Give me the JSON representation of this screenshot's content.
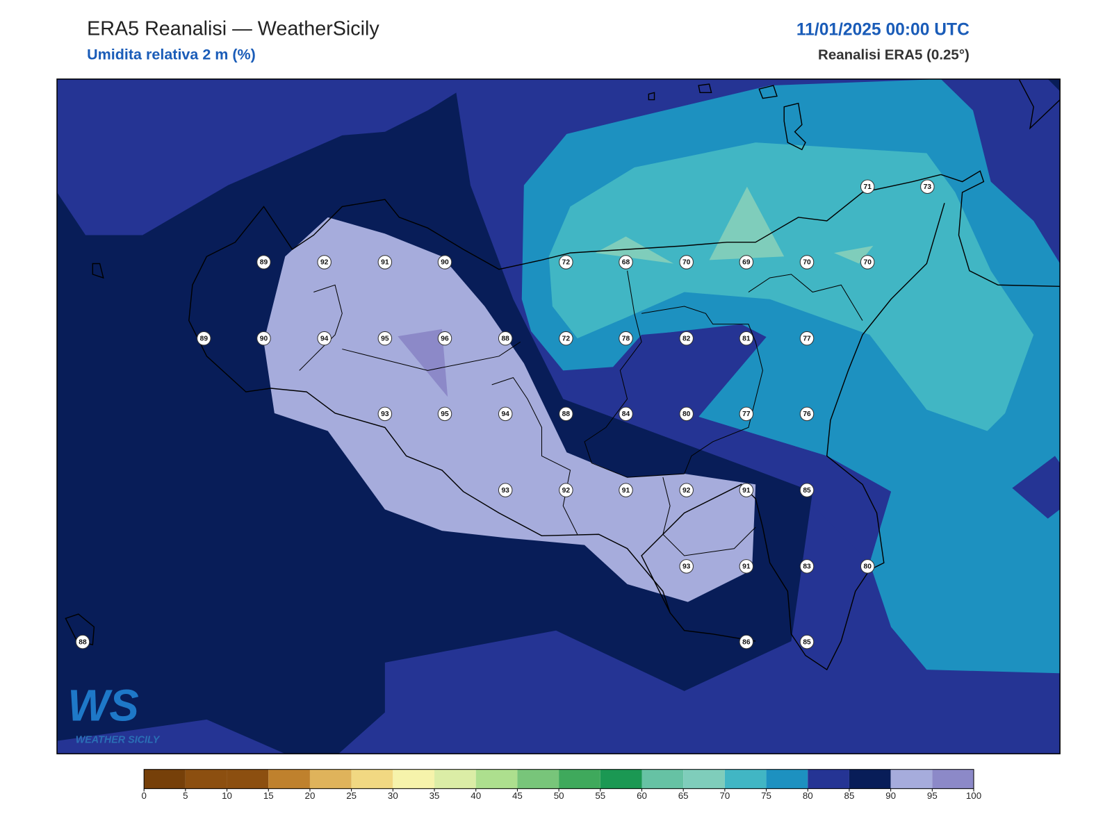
{
  "header": {
    "title": "ERA5 Reanalisi — WeatherSicily",
    "subtitle": "Umidita relativa 2 m (%)",
    "datetime": "11/01/2025 00:00 UTC",
    "source": "Reanalisi ERA5 (0.25°)"
  },
  "stations": [
    89,
    92,
    91,
    90,
    72,
    68,
    70,
    69,
    70,
    70,
    71,
    73,
    89,
    90,
    94,
    95,
    96,
    88,
    72,
    78,
    82,
    81,
    77,
    93,
    95,
    94,
    88,
    84,
    80,
    77,
    76,
    93,
    92,
    91,
    92,
    91,
    85,
    93,
    91,
    83,
    80,
    88,
    86,
    85
  ],
  "colorbar": {
    "ticks": [
      0,
      5,
      10,
      15,
      20,
      25,
      30,
      35,
      40,
      45,
      50,
      55,
      60,
      65,
      70,
      75,
      80,
      85,
      90,
      95,
      100
    ],
    "colors": [
      "#764009",
      "#8c4f10",
      "#8c4f10",
      "#bf812d",
      "#dfb35b",
      "#f1d882",
      "#f6f3ab",
      "#dbeda6",
      "#addf8e",
      "#78c57a",
      "#3fa95c",
      "#1b9853",
      "#66c2a4",
      "#7fcdbb",
      "#41b6c4",
      "#1d91c0",
      "#253494",
      "#081d58",
      "#a6acdc",
      "#8c89c8"
    ]
  },
  "logo": {
    "mark": "WS",
    "text": "WEATHER SICILY"
  }
}
